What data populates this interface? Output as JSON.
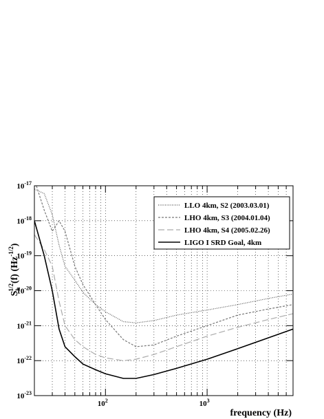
{
  "chart_data": {
    "type": "line",
    "title": "",
    "xlabel": "frequency (Hz)",
    "ylabel_base": "S",
    "ylabel_sub": "h",
    "ylabel_sup": "1/2",
    "ylabel_mid": "(f) (Hz",
    "ylabel_exp": "-1/2",
    "ylabel_end": ")",
    "xscale": "log",
    "yscale": "log",
    "xlim": [
      20,
      7000
    ],
    "ylim": [
      1e-23,
      1e-17
    ],
    "grid": true,
    "legend_position": "top-right",
    "x_ticks": [
      {
        "value": 100,
        "base": "10",
        "exp": "2"
      },
      {
        "value": 1000,
        "base": "10",
        "exp": "3"
      }
    ],
    "y_ticks": [
      {
        "value": 1e-17,
        "base": "10",
        "exp": "-17"
      },
      {
        "value": 1e-18,
        "base": "10",
        "exp": "-18"
      },
      {
        "value": 1e-19,
        "base": "10",
        "exp": "-19"
      },
      {
        "value": 1e-20,
        "base": "10",
        "exp": "-20"
      },
      {
        "value": 1e-21,
        "base": "10",
        "exp": "-21"
      },
      {
        "value": 1e-22,
        "base": "10",
        "exp": "-22"
      },
      {
        "value": 1e-23,
        "base": "10",
        "exp": "-23"
      }
    ],
    "series": [
      {
        "name": "LLO 4km, S2 (2003.03.01)",
        "color": "#555555",
        "dash": "1,1.5",
        "x": [
          20,
          25,
          30,
          35,
          40,
          50,
          60,
          80,
          100,
          150,
          200,
          300,
          500,
          1000,
          2000,
          4000,
          7000
        ],
        "y": [
          8e-18,
          6e-18,
          1.5e-18,
          2e-19,
          5e-20,
          2e-20,
          9e-21,
          4e-21,
          2.5e-21,
          1.3e-21,
          1.2e-21,
          1.4e-21,
          2e-21,
          2.8e-21,
          4e-21,
          6e-21,
          8e-21
        ]
      },
      {
        "name": "LHO 4km, S3 (2004.01.04)",
        "color": "#777777",
        "dash": "3,2",
        "x": [
          20,
          25,
          30,
          35,
          40,
          50,
          60,
          80,
          100,
          150,
          200,
          300,
          500,
          1000,
          2000,
          4000,
          7000
        ],
        "y": [
          1.5e-17,
          2e-18,
          5e-19,
          1e-18,
          5e-19,
          5e-20,
          1.5e-20,
          4e-21,
          1.5e-21,
          4e-22,
          2.5e-22,
          2.8e-22,
          5e-22,
          1e-21,
          2e-21,
          3e-21,
          4e-21
        ]
      },
      {
        "name": "LHO 4km, S4 (2005.02.26)",
        "color": "#aaaaaa",
        "dash": "9,4",
        "x": [
          20,
          25,
          30,
          35,
          40,
          50,
          60,
          80,
          100,
          150,
          200,
          300,
          500,
          1000,
          2000,
          4000,
          7000
        ],
        "y": [
          4e-19,
          1.5e-19,
          5e-20,
          5e-21,
          1e-21,
          4e-22,
          2.5e-22,
          1.5e-22,
          1.2e-22,
          1e-22,
          1.1e-22,
          1.5e-22,
          2.5e-22,
          5e-22,
          9e-22,
          1.5e-21,
          2.2e-21
        ]
      },
      {
        "name": "LIGO I SRD Goal, 4km",
        "color": "#000000",
        "dash": "",
        "x": [
          20,
          25,
          30,
          35,
          40,
          50,
          60,
          80,
          100,
          150,
          200,
          300,
          500,
          1000,
          2000,
          4000,
          7000
        ],
        "y": [
          1e-18,
          1e-19,
          1e-20,
          8e-22,
          2.5e-22,
          1.3e-22,
          8e-23,
          5.5e-23,
          4.2e-23,
          3.1e-23,
          3.1e-23,
          4e-23,
          6e-23,
          1.1e-22,
          2.2e-22,
          4.5e-22,
          8e-22
        ]
      }
    ]
  }
}
